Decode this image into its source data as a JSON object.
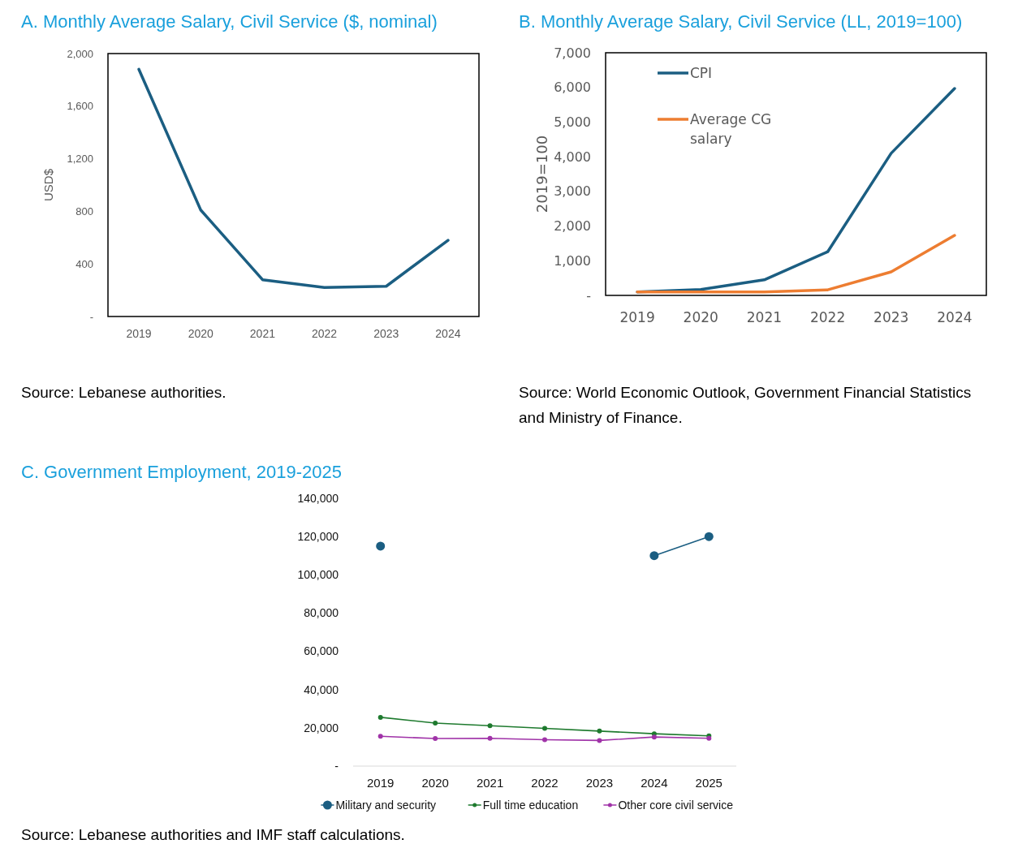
{
  "chart_data": [
    {
      "type": "line",
      "title": "A. Monthly Average Salary, Civil Service ($, nominal)",
      "ylabel": "USD$",
      "categories": [
        "2019",
        "2020",
        "2021",
        "2022",
        "2023",
        "2024"
      ],
      "series": [
        {
          "color": "#1b5e82",
          "values": [
            1880,
            810,
            280,
            220,
            230,
            580
          ]
        }
      ],
      "ylim": [
        0,
        2000
      ],
      "yticks": [
        {
          "value": 0,
          "label": "-"
        },
        400,
        {
          "value": 800,
          "label": "800"
        },
        {
          "value": 1200,
          "label": "1,200"
        },
        {
          "value": 1600,
          "label": "1,600"
        },
        {
          "value": 2000,
          "label": "2,000"
        }
      ],
      "legend": false,
      "annotations": [
        "Source: Lebanese authorities."
      ]
    },
    {
      "type": "line",
      "title": "B. Monthly Average Salary, Civil Service (LL, 2019=100)",
      "ylabel": "2019=100",
      "categories": [
        "2019",
        "2020",
        "2021",
        "2022",
        "2023",
        "2024"
      ],
      "series": [
        {
          "name": "CPI",
          "color": "#1b5e82",
          "values": [
            100,
            170,
            450,
            1260,
            4100,
            5970
          ]
        },
        {
          "name": "Average CG salary",
          "color": "#ed7d31",
          "values": [
            100,
            100,
            100,
            160,
            680,
            1730
          ]
        }
      ],
      "ylim": [
        0,
        7000
      ],
      "yticks": [
        {
          "value": 0,
          "label": "-"
        },
        {
          "value": 1000,
          "label": "1,000"
        },
        {
          "value": 2000,
          "label": "2,000"
        },
        {
          "value": 3000,
          "label": "3,000"
        },
        {
          "value": 4000,
          "label": "4,000"
        },
        {
          "value": 5000,
          "label": "5,000"
        },
        {
          "value": 6000,
          "label": "6,000"
        },
        {
          "value": 7000,
          "label": "7,000"
        }
      ],
      "legend": "top left",
      "annotations": [
        "Source: World Economic Outlook, Government Financial Statistics and  Ministry of Finance."
      ]
    },
    {
      "type": "line",
      "title": "C.  Government Employment, 2019-2025",
      "categories": [
        "2019",
        "2020",
        "2021",
        "2022",
        "2023",
        "2024",
        "2025"
      ],
      "marker": "circle",
      "series": [
        {
          "name": "Military and security",
          "color": "#1b5e82",
          "values": [
            115000,
            null,
            null,
            null,
            null,
            110000,
            120000
          ]
        },
        {
          "name": "Full time education",
          "color": "#1e7a2e",
          "values": [
            25500,
            22500,
            21100,
            19700,
            18300,
            16900,
            15800
          ]
        },
        {
          "name": "Other core civil service",
          "color": "#a033a8",
          "values": [
            15600,
            14400,
            14500,
            13800,
            13400,
            15200,
            14500
          ]
        }
      ],
      "ylim": [
        0,
        140000
      ],
      "yticks": [
        {
          "value": 0,
          "label": "-"
        },
        {
          "value": 20000,
          "label": "20,000"
        },
        {
          "value": 40000,
          "label": "40,000"
        },
        {
          "value": 60000,
          "label": "60,000"
        },
        {
          "value": 80000,
          "label": "80,000"
        },
        {
          "value": 100000,
          "label": "100,000"
        },
        {
          "value": 120000,
          "label": "120,000"
        },
        {
          "value": 140000,
          "label": "140,000"
        }
      ],
      "legend": "bottom",
      "annotations": [
        "Source: Lebanese authorities and IMF staff calculations."
      ]
    }
  ]
}
